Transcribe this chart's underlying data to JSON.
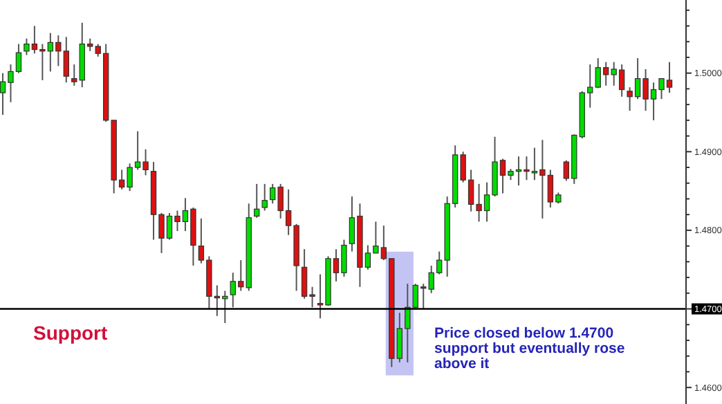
{
  "chart_data": {
    "type": "candlestick",
    "categories": [
      null,
      null,
      null,
      null,
      null,
      null,
      null,
      null,
      null,
      null,
      null,
      null,
      null,
      null,
      null,
      null,
      null,
      null,
      null,
      null,
      null,
      null,
      null,
      null,
      null,
      null,
      null,
      null,
      null,
      null,
      null,
      null,
      null,
      null,
      null,
      null,
      null,
      null,
      null,
      null,
      null,
      null,
      null,
      null,
      null,
      null,
      null,
      null,
      null,
      null,
      null,
      null,
      null,
      null,
      null,
      null,
      null,
      null,
      null,
      null,
      null,
      null,
      null,
      null,
      null,
      null,
      null,
      null,
      null,
      null,
      null,
      null,
      null,
      null,
      null,
      null,
      null,
      null,
      null,
      null,
      null,
      null,
      null,
      null,
      null
    ],
    "ohlc": [
      [
        1.4975,
        1.5,
        1.4947,
        1.4989
      ],
      [
        1.4988,
        1.5011,
        1.4963,
        1.5002
      ],
      [
        1.5002,
        1.5037,
        1.5,
        1.5026
      ],
      [
        1.5028,
        1.5044,
        1.5023,
        1.5037
      ],
      [
        1.5037,
        1.506,
        1.5025,
        1.503
      ],
      [
        1.503,
        1.5037,
        1.4991,
        1.5028
      ],
      [
        1.5028,
        1.5051,
        1.5002,
        1.5039
      ],
      [
        1.5039,
        1.5048,
        1.5009,
        1.5028
      ],
      [
        1.5028,
        1.5046,
        1.4988,
        1.4996
      ],
      [
        1.4993,
        1.5011,
        1.4984,
        1.4989
      ],
      [
        1.4991,
        1.5064,
        1.4982,
        1.5037
      ],
      [
        1.5037,
        1.5044,
        1.5028,
        1.5034
      ],
      [
        1.5034,
        1.5037,
        1.5021,
        1.5025
      ],
      [
        1.5025,
        1.5037,
        1.4938,
        1.494
      ],
      [
        1.494,
        1.494,
        1.4847,
        1.4864
      ],
      [
        1.4864,
        1.4877,
        1.4852,
        1.4855
      ],
      [
        1.4855,
        1.4885,
        1.485,
        1.488
      ],
      [
        1.488,
        1.4926,
        1.4877,
        1.4887
      ],
      [
        1.4887,
        1.4903,
        1.487,
        1.4877
      ],
      [
        1.4875,
        1.4887,
        1.4788,
        1.482
      ],
      [
        1.482,
        1.4822,
        1.4771,
        1.479
      ],
      [
        1.479,
        1.4822,
        1.4788,
        1.4818
      ],
      [
        1.4818,
        1.4825,
        1.4799,
        1.4811
      ],
      [
        1.4811,
        1.4841,
        1.4799,
        1.4825
      ],
      [
        1.4827,
        1.4829,
        1.4755,
        1.4781
      ],
      [
        1.478,
        1.4815,
        1.4758,
        1.4762
      ],
      [
        1.4762,
        1.4767,
        1.47,
        1.4716
      ],
      [
        1.4716,
        1.473,
        1.4691,
        1.4714
      ],
      [
        1.4713,
        1.4723,
        1.4682,
        1.4716
      ],
      [
        1.4718,
        1.4746,
        1.4702,
        1.4735
      ],
      [
        1.4735,
        1.4762,
        1.4723,
        1.4728
      ],
      [
        1.4727,
        1.4834,
        1.4723,
        1.4816
      ],
      [
        1.4818,
        1.4859,
        1.4816,
        1.4827
      ],
      [
        1.4829,
        1.4859,
        1.4825,
        1.4838
      ],
      [
        1.4839,
        1.4859,
        1.4834,
        1.4854
      ],
      [
        1.4855,
        1.4859,
        1.4815,
        1.4825
      ],
      [
        1.4825,
        1.4852,
        1.4794,
        1.4806
      ],
      [
        1.4806,
        1.4808,
        1.4723,
        1.4755
      ],
      [
        1.4753,
        1.4776,
        1.4713,
        1.4716
      ],
      [
        1.4718,
        1.4728,
        1.4702,
        1.4716
      ],
      [
        1.4707,
        1.4744,
        1.4688,
        1.4705
      ],
      [
        1.4705,
        1.4767,
        1.4704,
        1.4764
      ],
      [
        1.4764,
        1.4776,
        1.4735,
        1.4746
      ],
      [
        1.4746,
        1.4788,
        1.4741,
        1.4781
      ],
      [
        1.4783,
        1.4843,
        1.4773,
        1.4816
      ],
      [
        1.4818,
        1.4834,
        1.4728,
        1.4753
      ],
      [
        1.4753,
        1.4781,
        1.475,
        1.4771
      ],
      [
        1.4771,
        1.4811,
        1.4771,
        1.478
      ],
      [
        1.4778,
        1.4806,
        1.4762,
        1.4764
      ],
      [
        1.4764,
        1.4764,
        1.4626,
        1.4637
      ],
      [
        1.4637,
        1.4695,
        1.4632,
        1.4675
      ],
      [
        1.4675,
        1.4732,
        1.4632,
        1.4702
      ],
      [
        1.4702,
        1.4732,
        1.47,
        1.473
      ],
      [
        1.4728,
        1.4732,
        1.47,
        1.4727
      ],
      [
        1.4725,
        1.4755,
        1.472,
        1.4746
      ],
      [
        1.4746,
        1.4773,
        1.4744,
        1.4762
      ],
      [
        1.4762,
        1.4843,
        1.4741,
        1.4834
      ],
      [
        1.4834,
        1.4908,
        1.4829,
        1.4896
      ],
      [
        1.4896,
        1.49,
        1.4861,
        1.4864
      ],
      [
        1.4864,
        1.4877,
        1.4824,
        1.4833
      ],
      [
        1.4833,
        1.4859,
        1.4811,
        1.4825
      ],
      [
        1.4825,
        1.4861,
        1.4811,
        1.4845
      ],
      [
        1.4845,
        1.4919,
        1.4843,
        1.4887
      ],
      [
        1.4889,
        1.4891,
        1.4847,
        1.487
      ],
      [
        1.487,
        1.4878,
        1.4864,
        1.4875
      ],
      [
        1.4875,
        1.4894,
        1.4857,
        1.4877
      ],
      [
        1.4877,
        1.4894,
        1.4864,
        1.4875
      ],
      [
        1.4873,
        1.4905,
        1.4864,
        1.4875
      ],
      [
        1.4877,
        1.4915,
        1.4815,
        1.487
      ],
      [
        1.487,
        1.4877,
        1.4829,
        1.4836
      ],
      [
        1.4836,
        1.4848,
        1.4834,
        1.4845
      ],
      [
        1.4887,
        1.4889,
        1.4863,
        1.4866
      ],
      [
        1.4866,
        1.4922,
        1.4859,
        1.4921
      ],
      [
        1.4919,
        1.4977,
        1.4917,
        1.4975
      ],
      [
        1.4975,
        1.5011,
        1.4956,
        1.4982
      ],
      [
        1.4982,
        1.5019,
        1.4981,
        1.5007
      ],
      [
        1.5007,
        1.5014,
        1.4984,
        1.4998
      ],
      [
        1.4998,
        1.5014,
        1.4984,
        1.5005
      ],
      [
        1.5004,
        1.5011,
        1.497,
        1.4979
      ],
      [
        1.4977,
        1.4982,
        1.4952,
        1.497
      ],
      [
        1.497,
        1.5019,
        1.4967,
        1.4993
      ],
      [
        1.4993,
        1.5005,
        1.4952,
        1.4967
      ],
      [
        1.4967,
        1.4988,
        1.494,
        1.4979
      ],
      [
        1.4979,
        1.4993,
        1.4967,
        1.4993
      ],
      [
        1.4991,
        1.5014,
        1.4975,
        1.4982
      ]
    ],
    "colors": [
      "#00dd00",
      "#00dd00",
      "#00dd00",
      "#00dd00",
      "#dd1111",
      "#dd1111",
      "#00dd00",
      "#dd1111",
      "#dd1111",
      "#dd1111",
      "#00dd00",
      "#dd1111",
      "#dd1111",
      "#dd1111",
      "#dd1111",
      "#dd1111",
      "#00dd00",
      "#00dd00",
      "#dd1111",
      "#dd1111",
      "#dd1111",
      "#00dd00",
      "#dd1111",
      "#00dd00",
      "#dd1111",
      "#dd1111",
      "#dd1111",
      "#dd1111",
      "#00dd00",
      "#00dd00",
      "#dd1111",
      "#00dd00",
      "#00dd00",
      "#00dd00",
      "#00dd00",
      "#dd1111",
      "#dd1111",
      "#dd1111",
      "#dd1111",
      "#dd1111",
      "#dd1111",
      "#00dd00",
      "#dd1111",
      "#00dd00",
      "#00dd00",
      "#dd1111",
      "#00dd00",
      "#00dd00",
      "#dd1111",
      "#dd1111",
      "#00dd00",
      "#00dd00",
      "#00dd00",
      "#dd1111",
      "#00dd00",
      "#00dd00",
      "#00dd00",
      "#00dd00",
      "#dd1111",
      "#dd1111",
      "#dd1111",
      "#00dd00",
      "#00dd00",
      "#dd1111",
      "#00dd00",
      "#00dd00",
      "#dd1111",
      "#00dd00",
      "#dd1111",
      "#dd1111",
      "#00dd00",
      "#dd1111",
      "#00dd00",
      "#00dd00",
      "#00dd00",
      "#00dd00",
      "#dd1111",
      "#00dd00",
      "#dd1111",
      "#dd1111",
      "#00dd00",
      "#dd1111",
      "#00dd00",
      "#00dd00",
      "#dd1111"
    ],
    "ylim": [
      1.4579,
      1.5093
    ],
    "yticks": [
      {
        "value": 1.46,
        "label": "1.4600"
      },
      {
        "value": 1.462,
        "label": null
      },
      {
        "value": 1.464,
        "label": null
      },
      {
        "value": 1.466,
        "label": null
      },
      {
        "value": 1.468,
        "label": null
      },
      {
        "value": 1.47,
        "label": "1.4700"
      },
      {
        "value": 1.472,
        "label": null
      },
      {
        "value": 1.474,
        "label": null
      },
      {
        "value": 1.476,
        "label": null
      },
      {
        "value": 1.478,
        "label": null
      },
      {
        "value": 1.48,
        "label": "1.4800"
      },
      {
        "value": 1.482,
        "label": null
      },
      {
        "value": 1.484,
        "label": null
      },
      {
        "value": 1.486,
        "label": null
      },
      {
        "value": 1.488,
        "label": null
      },
      {
        "value": 1.49,
        "label": "1.4900"
      },
      {
        "value": 1.492,
        "label": null
      },
      {
        "value": 1.494,
        "label": null
      },
      {
        "value": 1.496,
        "label": null
      },
      {
        "value": 1.498,
        "label": null
      },
      {
        "value": 1.5,
        "label": "1.5000"
      },
      {
        "value": 1.502,
        "label": null
      },
      {
        "value": 1.504,
        "label": null
      },
      {
        "value": 1.506,
        "label": null
      },
      {
        "value": 1.508,
        "label": null
      }
    ],
    "tick_labels": "y",
    "ref_lines": [
      {
        "axis": "y",
        "value": 1.47,
        "label": "Support",
        "color": "#000000"
      }
    ],
    "annotations": [
      "Price closed below 1.4700 support but eventually rose above it"
    ]
  }
}
